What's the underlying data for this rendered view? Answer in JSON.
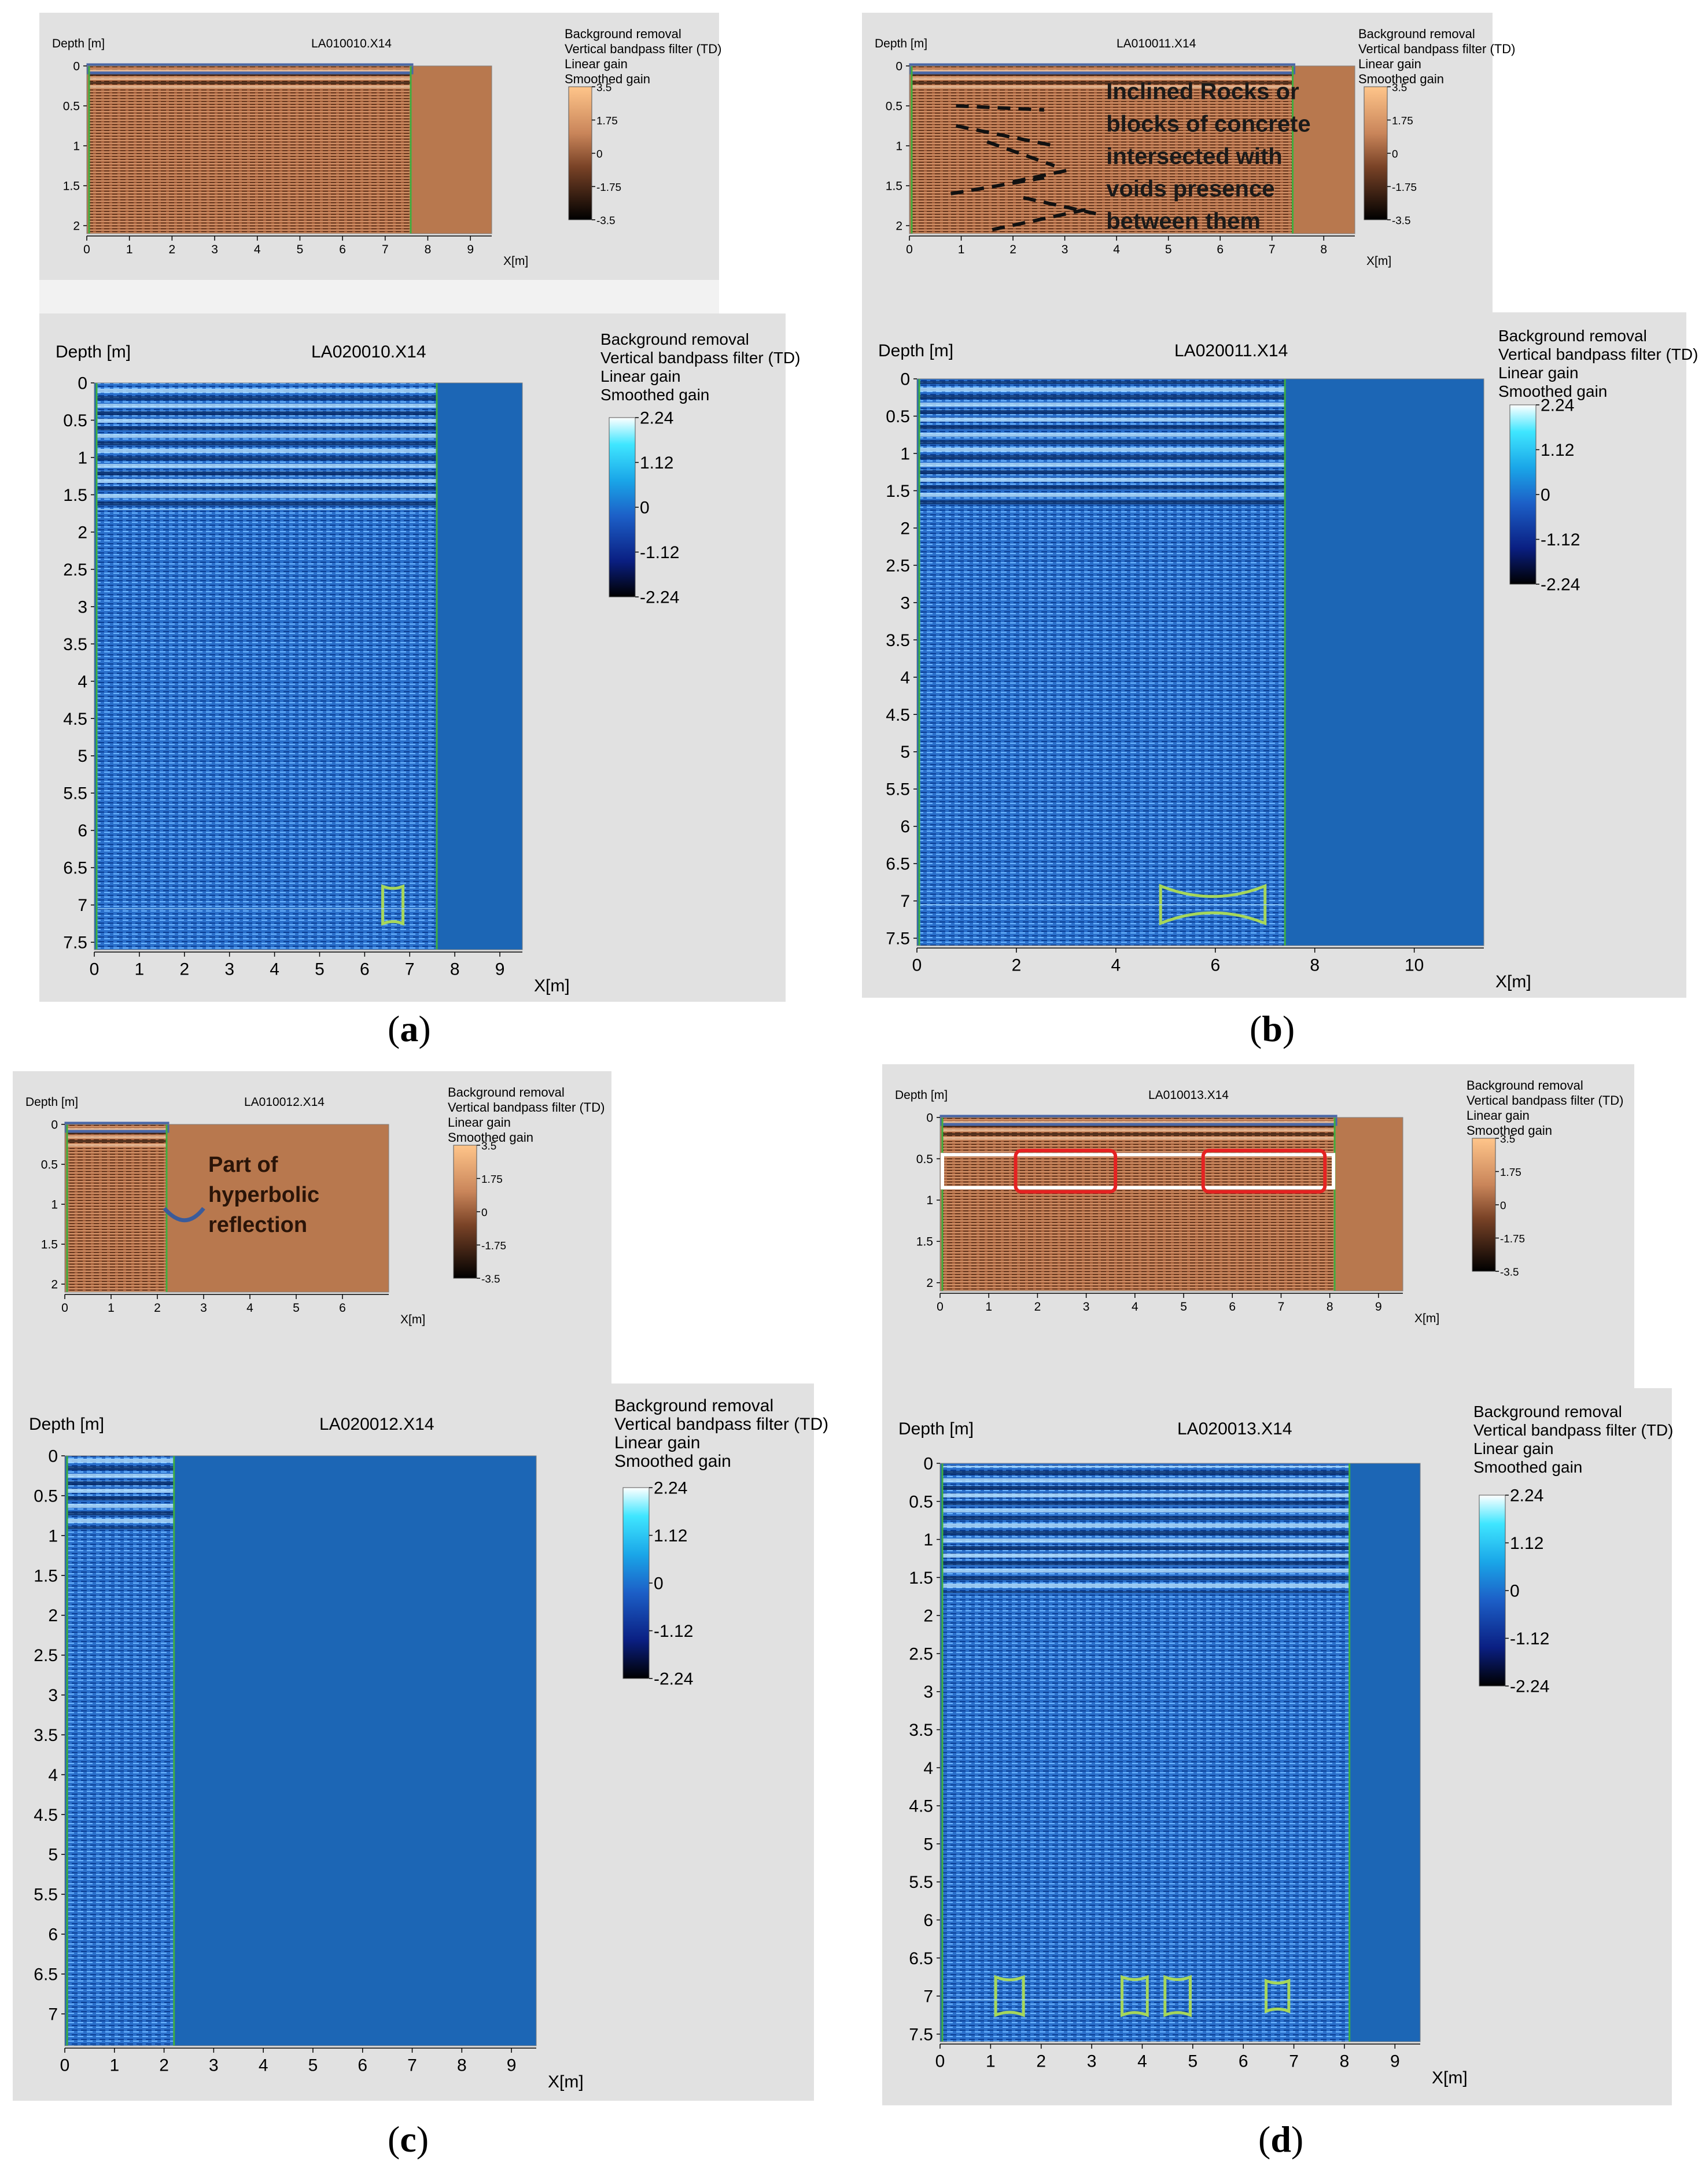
{
  "figure_labels": {
    "a": {
      "open": "(",
      "letter": "a",
      "close": ")"
    },
    "b": {
      "open": "(",
      "letter": "b",
      "close": ")"
    },
    "c": {
      "open": "(",
      "letter": "c",
      "close": ")"
    },
    "d": {
      "open": "(",
      "letter": "d",
      "close": ")"
    }
  },
  "filters": [
    "Background removal",
    "Vertical bandpass filter (TD)",
    "Linear gain",
    "Smoothed gain"
  ],
  "colors": {
    "panel_bg": "#e1e1e1",
    "radargram_400_bg": "#b8784e",
    "radargram_400_fill": "#a9643f",
    "radargram_200_bg": "#1c66b5",
    "radargram_200_fill": "#0e5ec4",
    "trace_line": "#3fae3f",
    "annotation_green": "#a6d65a",
    "annotation_red": "#e52222",
    "annotation_white": "#ffffff",
    "hyperbola_blue": "#3b5b9a"
  },
  "chart_data": [
    {
      "id": "a-top",
      "type": "heatmap",
      "title": "LA010010.X14",
      "ylabel": "Depth [m]",
      "xlabel": "X[m]",
      "x_ticks": [
        "0",
        "1",
        "2",
        "3",
        "4",
        "5",
        "6",
        "7",
        "8",
        "9"
      ],
      "y_ticks": [
        "0",
        "0.5",
        "1",
        "1.5",
        "2"
      ],
      "xlim": [
        0,
        9.5
      ],
      "ylim": [
        0,
        2.1
      ],
      "profile_end": 7.6,
      "colorbar": {
        "ticks": [
          "3.5",
          "1.75",
          "0",
          "-1.75",
          "-3.5"
        ],
        "scheme": "copper"
      }
    },
    {
      "id": "a-bottom",
      "type": "heatmap",
      "title": "LA020010.X14",
      "ylabel": "Depth [m]",
      "xlabel": "X[m]",
      "x_ticks": [
        "0",
        "1",
        "2",
        "3",
        "4",
        "5",
        "6",
        "7",
        "8",
        "9"
      ],
      "y_ticks": [
        "0",
        "0.5",
        "1",
        "1.5",
        "2",
        "2.5",
        "3",
        "3.5",
        "4",
        "4.5",
        "5",
        "5.5",
        "6",
        "6.5",
        "7",
        "7.5"
      ],
      "xlim": [
        0,
        9.5
      ],
      "ylim": [
        0,
        7.6
      ],
      "profile_end": 7.6,
      "colorbar": {
        "ticks": [
          "2.24",
          "1.12",
          "0",
          "-1.12",
          "-2.24"
        ],
        "scheme": "blue"
      }
    },
    {
      "id": "b-top",
      "type": "heatmap",
      "title": "LA010011.X14",
      "ylabel": "Depth [m]",
      "xlabel": "X[m]",
      "x_ticks": [
        "0",
        "1",
        "2",
        "3",
        "4",
        "5",
        "6",
        "7",
        "8"
      ],
      "y_ticks": [
        "0",
        "0.5",
        "1",
        "1.5",
        "2"
      ],
      "xlim": [
        0,
        8.6
      ],
      "ylim": [
        0,
        2.1
      ],
      "profile_end": 7.4,
      "annotation": [
        "Inclined Rocks or",
        "blocks of concrete",
        "intersected with",
        "voids presence",
        "between them"
      ],
      "colorbar": {
        "ticks": [
          "3.5",
          "1.75",
          "0",
          "-1.75",
          "-3.5"
        ],
        "scheme": "copper"
      }
    },
    {
      "id": "b-bottom",
      "type": "heatmap",
      "title": "LA020011.X14",
      "ylabel": "Depth [m]",
      "xlabel": "X[m]",
      "x_ticks": [
        "0",
        "2",
        "4",
        "6",
        "8",
        "10"
      ],
      "y_ticks": [
        "0",
        "0.5",
        "1",
        "1.5",
        "2",
        "2.5",
        "3",
        "3.5",
        "4",
        "4.5",
        "5",
        "5.5",
        "6",
        "6.5",
        "7",
        "7.5"
      ],
      "xlim": [
        0,
        11.4
      ],
      "ylim": [
        0,
        7.6
      ],
      "profile_end": 7.4,
      "colorbar": {
        "ticks": [
          "2.24",
          "1.12",
          "0",
          "-1.12",
          "-2.24"
        ],
        "scheme": "blue"
      }
    },
    {
      "id": "c-top",
      "type": "heatmap",
      "title": "LA010012.X14",
      "ylabel": "Depth [m]",
      "xlabel": "X[m]",
      "x_ticks": [
        "0",
        "1",
        "2",
        "3",
        "4",
        "5",
        "6"
      ],
      "y_ticks": [
        "0",
        "0.5",
        "1",
        "1.5",
        "2"
      ],
      "xlim": [
        0,
        7.0
      ],
      "ylim": [
        0,
        2.1
      ],
      "profile_end": 2.2,
      "annotation": [
        "Part of",
        "hyperbolic",
        "reflection"
      ],
      "colorbar": {
        "ticks": [
          "3.5",
          "1.75",
          "0",
          "-1.75",
          "-3.5"
        ],
        "scheme": "copper"
      }
    },
    {
      "id": "c-bottom",
      "type": "heatmap",
      "title": "LA020012.X14",
      "ylabel": "Depth [m]",
      "xlabel": "X[m]",
      "x_ticks": [
        "0",
        "1",
        "2",
        "3",
        "4",
        "5",
        "6",
        "7",
        "8",
        "9"
      ],
      "y_ticks": [
        "0",
        "0.5",
        "1",
        "1.5",
        "2",
        "2.5",
        "3",
        "3.5",
        "4",
        "4.5",
        "5",
        "5.5",
        "6",
        "6.5",
        "7"
      ],
      "xlim": [
        0,
        9.5
      ],
      "ylim": [
        0,
        7.4
      ],
      "profile_end": 2.2,
      "colorbar": {
        "ticks": [
          "2.24",
          "1.12",
          "0",
          "-1.12",
          "-2.24"
        ],
        "scheme": "blue"
      }
    },
    {
      "id": "d-top",
      "type": "heatmap",
      "title": "LA010013.X14",
      "ylabel": "Depth [m]",
      "xlabel": "X[m]",
      "x_ticks": [
        "0",
        "1",
        "2",
        "3",
        "4",
        "5",
        "6",
        "7",
        "8",
        "9"
      ],
      "y_ticks": [
        "0",
        "0.5",
        "1",
        "1.5",
        "2"
      ],
      "xlim": [
        0,
        9.5
      ],
      "ylim": [
        0,
        2.1
      ],
      "profile_end": 8.1,
      "colorbar": {
        "ticks": [
          "3.5",
          "1.75",
          "0",
          "-1.75",
          "-3.5"
        ],
        "scheme": "copper"
      }
    },
    {
      "id": "d-bottom",
      "type": "heatmap",
      "title": "LA020013.X14",
      "ylabel": "Depth [m]",
      "xlabel": "X[m]",
      "x_ticks": [
        "0",
        "1",
        "2",
        "3",
        "4",
        "5",
        "6",
        "7",
        "8",
        "9"
      ],
      "y_ticks": [
        "0",
        "0.5",
        "1",
        "1.5",
        "2",
        "2.5",
        "3",
        "3.5",
        "4",
        "4.5",
        "5",
        "5.5",
        "6",
        "6.5",
        "7",
        "7.5"
      ],
      "xlim": [
        0,
        9.5
      ],
      "ylim": [
        0,
        7.6
      ],
      "profile_end": 8.1,
      "colorbar": {
        "ticks": [
          "2.24",
          "1.12",
          "0",
          "-1.12",
          "-2.24"
        ],
        "scheme": "blue"
      }
    }
  ]
}
